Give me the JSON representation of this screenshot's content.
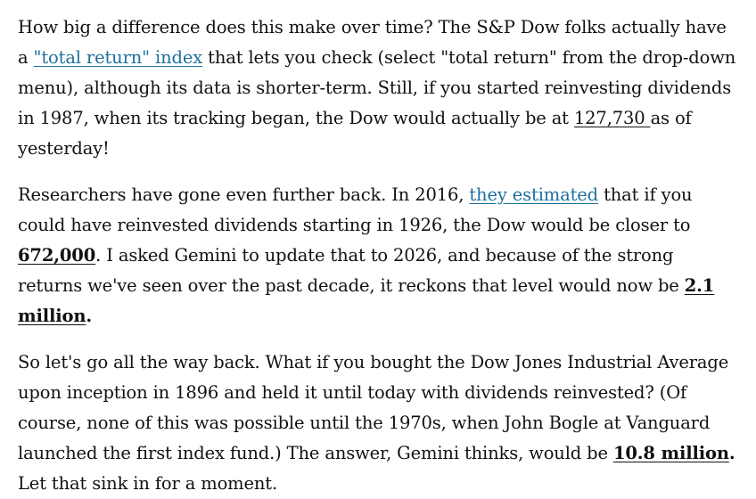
{
  "paragraphs": [
    {
      "p1_a": "How big a difference does this make over time? The S&P Dow folks actually have a ",
      "p1_link": "\"total return\" index",
      "p1_b": " that lets you check (select \"total return\" from the drop-down menu), although its data is shorter-term. Still, if you started reinvesting dividends in 1987, when its tracking began, the Dow would actually be at ",
      "p1_num": "127,730 ",
      "p1_c": "as of yesterday!"
    },
    {
      "p2_a": "Researchers have gone even further back. In 2016, ",
      "p2_link": "they estimated",
      "p2_b": " that if you could have reinvested dividends starting in 1926, the Dow would be closer to ",
      "p2_num": "672,000",
      "p2_c": ". I asked Gemini to update that to 2026, and because of the strong returns we've seen over the past decade, it reckons that level would now be ",
      "p2_num2": "2.1 million",
      "p2_d": "."
    },
    {
      "p3_a": "So let's go all the way back. What if you bought the Dow Jones Industrial Average upon inception in 1896 and held it until today with dividends reinvested? (Of course, none of this was possible until the 1970s, when John Bogle at Vanguard launched the first index fund.) The answer, Gemini thinks, would be ",
      "p3_num": "10.8 million",
      "p3_b": ".",
      "p3_c": " Let that sink in for a moment."
    }
  ],
  "colors": {
    "text": "#111111",
    "link": "#1f6f9f",
    "background": "#ffffff"
  }
}
